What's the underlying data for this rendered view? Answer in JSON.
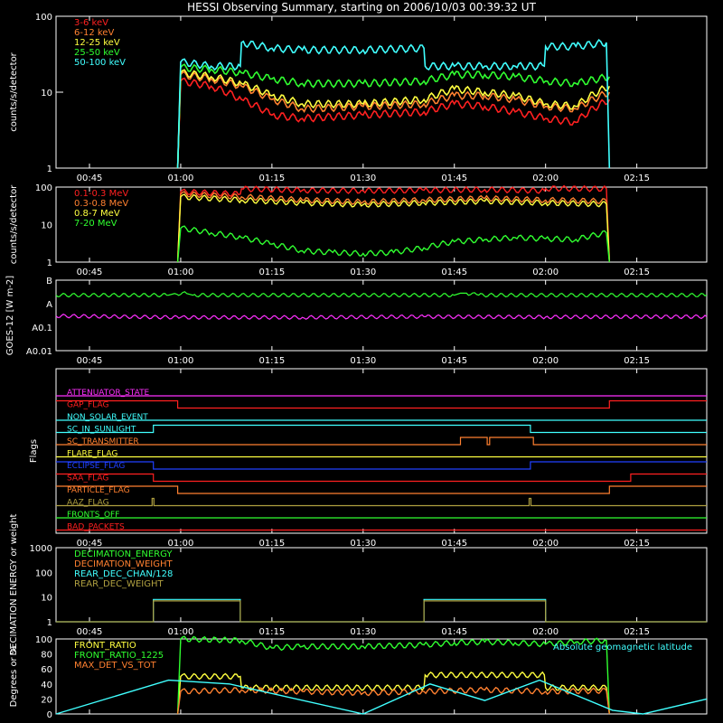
{
  "title": "HESSI Observing Summary, starting on 2006/10/03 00:39:32 UT",
  "time_ticks": [
    "00:45",
    "01:00",
    "01:15",
    "01:30",
    "01:45",
    "02:00",
    "02:15"
  ],
  "time_tick_minutes": [
    45,
    60,
    75,
    90,
    105,
    120,
    135
  ],
  "colors": {
    "red": "#ff2020",
    "orange": "#ff8030",
    "yellow": "#ffff40",
    "green": "#30ff30",
    "cyan": "#40ffff",
    "magenta": "#ff30ff",
    "blue": "#2040ff",
    "olive": "#b0a040"
  },
  "chart_data": [
    {
      "type": "line",
      "panel": "count-rates",
      "ylabel": "counts/s/detector",
      "yscale": "log",
      "ylim": [
        1,
        100
      ],
      "ytick_labels": [
        "1",
        "10",
        "100"
      ],
      "xlim_minutes": [
        39.5,
        146.5
      ],
      "legend_placement": "top-left",
      "series": [
        {
          "name": "3-6 keV",
          "color": "red",
          "x": [
            59.5,
            60,
            65,
            70,
            75,
            80,
            90,
            100,
            105,
            110,
            115,
            120,
            125,
            130.5
          ],
          "y": [
            1,
            14,
            12,
            8,
            5,
            4.5,
            5,
            5.5,
            7,
            6.5,
            5.5,
            4.5,
            4,
            8
          ]
        },
        {
          "name": "6-12 keV",
          "color": "orange",
          "x": [
            59.5,
            60,
            65,
            70,
            75,
            80,
            90,
            100,
            105,
            110,
            115,
            120,
            125,
            130.5
          ],
          "y": [
            1,
            17,
            15,
            12,
            8,
            6,
            6.5,
            7,
            9,
            9,
            8,
            6.5,
            6,
            10
          ]
        },
        {
          "name": "12-25 keV",
          "color": "yellow",
          "x": [
            59.5,
            60,
            65,
            70,
            75,
            80,
            90,
            100,
            105,
            110,
            115,
            120,
            125,
            130.5
          ],
          "y": [
            1,
            18,
            16,
            13,
            9,
            7,
            7,
            8,
            11,
            10,
            9,
            7,
            6.5,
            12
          ]
        },
        {
          "name": "25-50 keV",
          "color": "green",
          "x": [
            59.5,
            60,
            65,
            70,
            75,
            80,
            90,
            100,
            105,
            110,
            115,
            120,
            125,
            130.5
          ],
          "y": [
            1,
            21,
            20,
            18,
            15,
            13,
            13,
            14,
            17,
            17,
            16,
            14,
            13,
            16
          ]
        },
        {
          "name": "50-100 keV",
          "color": "cyan",
          "x": [
            59.5,
            60,
            65,
            69.8,
            70,
            75,
            80,
            90,
            100,
            100.2,
            105,
            110,
            115,
            119.8,
            120,
            125,
            130,
            130.5
          ],
          "y": [
            1,
            25,
            22,
            22,
            45,
            38,
            36,
            36,
            38,
            22,
            22,
            22,
            22,
            22,
            40,
            40,
            45,
            1
          ]
        }
      ]
    },
    {
      "type": "line",
      "panel": "mev-rates",
      "ylabel": "counts/s/detector",
      "yscale": "log",
      "ylim": [
        1,
        100
      ],
      "ytick_labels": [
        "1",
        "10",
        "100"
      ],
      "xlim_minutes": [
        39.5,
        146.5
      ],
      "legend_placement": "top-left",
      "series": [
        {
          "name": "0.1-0.3 MeV",
          "color": "red",
          "x": [
            59.5,
            60,
            69.8,
            70,
            80,
            90,
            100,
            110,
            119.8,
            120,
            130,
            130.5
          ],
          "y": [
            1,
            75,
            65,
            90,
            82,
            80,
            82,
            86,
            80,
            92,
            90,
            1
          ]
        },
        {
          "name": "0.3-0.8 MeV",
          "color": "orange",
          "x": [
            59.5,
            60,
            70,
            80,
            90,
            100,
            110,
            120,
            130,
            130.5
          ],
          "y": [
            1,
            65,
            55,
            45,
            40,
            45,
            50,
            45,
            42,
            1
          ]
        },
        {
          "name": "0.8-7 MeV",
          "color": "yellow",
          "x": [
            59.5,
            60,
            70,
            80,
            90,
            100,
            110,
            120,
            130,
            130.5
          ],
          "y": [
            1,
            55,
            45,
            38,
            34,
            38,
            42,
            38,
            35,
            1
          ]
        },
        {
          "name": "7-20 MeV",
          "color": "green",
          "x": [
            59.5,
            60,
            65,
            70,
            75,
            80,
            85,
            90,
            95,
            100,
            105,
            110,
            115,
            120,
            125,
            130,
            130.5
          ],
          "y": [
            1,
            8,
            6,
            4.5,
            3,
            2,
            1.8,
            1.7,
            1.8,
            2.4,
            3.5,
            4,
            4.5,
            4.2,
            4,
            6,
            1
          ]
        }
      ]
    },
    {
      "type": "line",
      "panel": "goes",
      "ylabel": "GOES-12 [W m-2]",
      "ytick_labels": [
        "B",
        "A",
        "A0.1",
        "A0.01"
      ],
      "xlim_minutes": [
        39.5,
        146.5
      ],
      "series": [
        {
          "color": "green",
          "x": [
            39.5,
            58,
            59,
            61,
            62,
            105,
            106,
            107,
            109,
            146.5
          ],
          "y": [
            2.3e-08,
            2.3e-08,
            2.7e-08,
            2.7e-08,
            2.3e-08,
            2.3e-08,
            2.8e-08,
            2.8e-08,
            2.3e-08,
            2.3e-08
          ]
        },
        {
          "color": "magenta",
          "x": [
            39.5,
            60,
            80,
            100,
            120,
            146.5
          ],
          "y": [
            3e-09,
            2.6e-09,
            2.6e-09,
            2.8e-09,
            2.7e-09,
            2.8e-09
          ]
        }
      ]
    },
    {
      "type": "line",
      "panel": "flags",
      "ylabel": "Flags",
      "xlim_minutes": [
        39.5,
        146.5
      ],
      "flags": [
        {
          "name": "ATTENUATOR_STATE",
          "color": "magenta",
          "transitions": [
            [
              39.5,
              0
            ]
          ]
        },
        {
          "name": "GAP_FLAG",
          "color": "red",
          "transitions": [
            [
              39.5,
              1
            ],
            [
              59.5,
              0
            ],
            [
              130.5,
              1
            ]
          ]
        },
        {
          "name": "NON_SOLAR_EVENT",
          "color": "cyan",
          "transitions": [
            [
              39.5,
              0
            ]
          ]
        },
        {
          "name": "SC_IN_SUNLIGHT",
          "color": "cyan",
          "transitions": [
            [
              39.5,
              0
            ],
            [
              55.5,
              1
            ],
            [
              117.5,
              0
            ]
          ]
        },
        {
          "name": "SC_TRANSMITTER",
          "color": "orange",
          "transitions": [
            [
              39.5,
              0
            ],
            [
              106,
              1
            ],
            [
              110.4,
              0
            ],
            [
              110.8,
              1
            ],
            [
              118,
              0
            ]
          ]
        },
        {
          "name": "FLARE_FLAG",
          "color": "yellow",
          "transitions": [
            [
              39.5,
              0
            ]
          ]
        },
        {
          "name": "ECLIPSE_FLAG",
          "color": "blue",
          "transitions": [
            [
              39.5,
              1
            ],
            [
              55.5,
              0
            ],
            [
              117.5,
              1
            ]
          ]
        },
        {
          "name": "SAA_FLAG",
          "color": "red",
          "transitions": [
            [
              39.5,
              1
            ],
            [
              55.5,
              0
            ],
            [
              134,
              1
            ]
          ]
        },
        {
          "name": "PARTICLE_FLAG",
          "color": "orange",
          "transitions": [
            [
              39.5,
              1
            ],
            [
              59.5,
              0
            ],
            [
              130.5,
              1
            ]
          ]
        },
        {
          "name": "AAZ_FLAG",
          "color": "olive",
          "transitions": [
            [
              39.5,
              0
            ],
            [
              55.3,
              1
            ],
            [
              55.6,
              0
            ],
            [
              117.3,
              1
            ],
            [
              117.6,
              0
            ]
          ]
        },
        {
          "name": "FRONTS_OFF",
          "color": "green",
          "transitions": [
            [
              39.5,
              0
            ]
          ]
        },
        {
          "name": "BAD_PACKETS",
          "color": "red",
          "transitions": [
            [
              39.5,
              0
            ]
          ]
        }
      ]
    },
    {
      "type": "line",
      "panel": "decimation",
      "ylabel": "DECIMATION ENERGY or weight",
      "yscale": "log",
      "ylim": [
        1,
        1000
      ],
      "ytick_labels": [
        "1",
        "10",
        "100",
        "1000"
      ],
      "xlim_minutes": [
        39.5,
        146.5
      ],
      "legend_placement": "top-left",
      "series": [
        {
          "name": "DECIMATION_ENERGY",
          "color": "green",
          "x": [],
          "y": []
        },
        {
          "name": "DECIMATION_WEIGHT",
          "color": "orange",
          "x": [],
          "y": []
        },
        {
          "name": "REAR_DEC_CHAN/128",
          "color": "cyan",
          "x": [
            39.5,
            55.5,
            55.5,
            69.8,
            69.8,
            100,
            100,
            120,
            120,
            146.5
          ],
          "y": [
            1,
            1,
            8,
            8,
            1,
            1,
            8,
            8,
            1,
            1
          ]
        },
        {
          "name": "REAR_DEC_WEIGHT",
          "color": "olive",
          "x": [
            39.5,
            55.5,
            55.5,
            69.8,
            69.8,
            100,
            100,
            120,
            120,
            146.5
          ],
          "y": [
            1,
            1,
            7,
            7,
            1,
            1,
            7,
            7,
            1,
            1
          ]
        }
      ]
    },
    {
      "type": "line",
      "panel": "ratios",
      "ylabel": "Degrees or %",
      "ylim": [
        0,
        100
      ],
      "ytick_labels": [
        "0",
        "20",
        "40",
        "60",
        "80",
        "100"
      ],
      "xlim_minutes": [
        39.5,
        146.5
      ],
      "legend_placement": "top-left",
      "annotation": "Absolute geomagnetic latitude",
      "series": [
        {
          "name": "FRONT_RATIO",
          "color": "yellow",
          "x": [
            59.5,
            60,
            69.8,
            70,
            100,
            100.2,
            119.8,
            120,
            130,
            130.5
          ],
          "y": [
            0,
            50,
            50,
            35,
            35,
            52,
            52,
            35,
            35,
            0
          ]
        },
        {
          "name": "FRONT_RATIO_1225",
          "color": "green",
          "x": [
            59.5,
            60,
            70,
            75,
            80,
            90,
            100,
            105,
            110,
            115,
            120,
            125,
            130,
            130.5
          ],
          "y": [
            0,
            100,
            98,
            88,
            90,
            90,
            92,
            95,
            96,
            95,
            93,
            96,
            98,
            0
          ]
        },
        {
          "name": "MAX_DET_VS_TOT",
          "color": "orange",
          "x": [
            59.5,
            60,
            70,
            80,
            90,
            100,
            110,
            120,
            130,
            130.5
          ],
          "y": [
            0,
            30,
            32,
            30,
            28,
            30,
            32,
            30,
            31,
            0
          ]
        },
        {
          "name": "",
          "color": "cyan",
          "x": [
            39.5,
            58,
            68,
            90,
            101,
            110,
            119,
            131,
            136,
            146.5
          ],
          "y": [
            0,
            45,
            40,
            0,
            40,
            18,
            45,
            5,
            0,
            20
          ]
        }
      ]
    }
  ]
}
